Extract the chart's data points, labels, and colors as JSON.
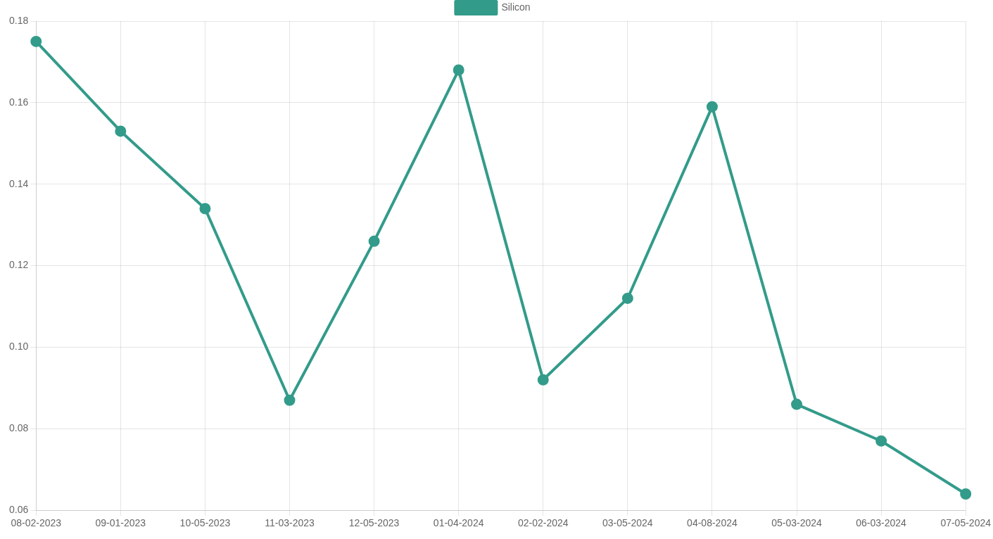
{
  "chart_data": {
    "type": "line",
    "categories": [
      "08-02-2023",
      "09-01-2023",
      "10-05-2023",
      "11-03-2023",
      "12-05-2023",
      "01-04-2024",
      "02-02-2024",
      "03-05-2024",
      "04-08-2024",
      "05-03-2024",
      "06-03-2024",
      "07-05-2024"
    ],
    "series": [
      {
        "name": "Silicon",
        "color": "#339b8a",
        "values": [
          0.175,
          0.153,
          0.134,
          0.087,
          0.126,
          0.168,
          0.092,
          0.112,
          0.159,
          0.086,
          0.077,
          0.064
        ]
      }
    ],
    "ylim": [
      0.06,
      0.18
    ],
    "yticks": [
      {
        "value": 0.06,
        "label": "0.06"
      },
      {
        "value": 0.08,
        "label": "0.08"
      },
      {
        "value": 0.1,
        "label": "0.10"
      },
      {
        "value": 0.12,
        "label": "0.12"
      },
      {
        "value": 0.14,
        "label": "0.14"
      },
      {
        "value": 0.16,
        "label": "0.16"
      },
      {
        "value": 0.18,
        "label": "0.18"
      }
    ],
    "grid": true,
    "legend": "top",
    "marker": "circle",
    "line_style": "solid"
  }
}
